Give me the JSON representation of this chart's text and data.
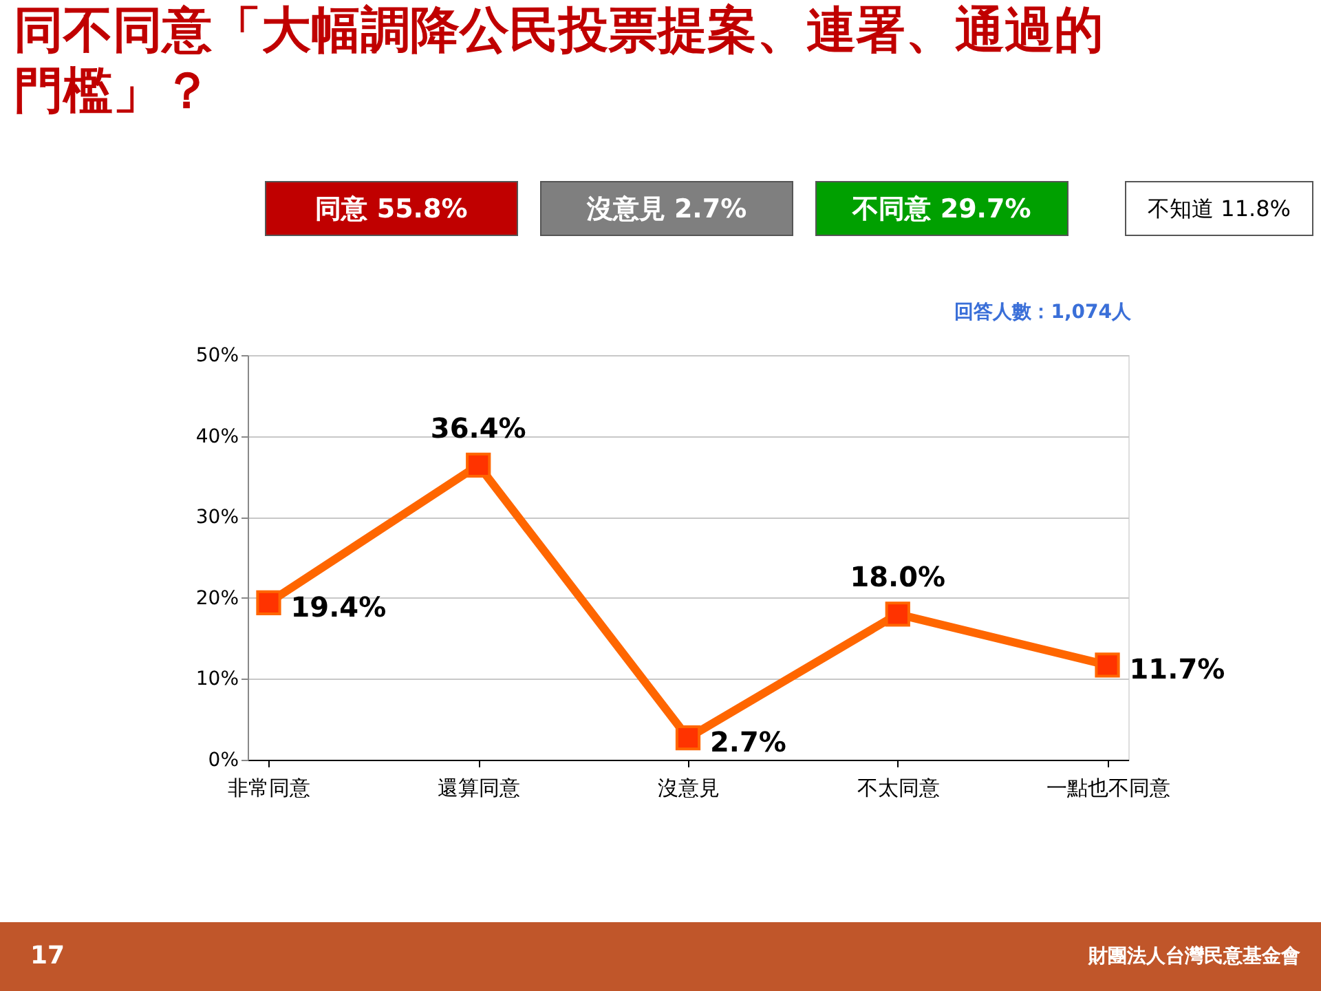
{
  "chart_data": {
    "type": "line",
    "title": "同不同意「大幅調降公民投票提案、連署、通過的門檻」？",
    "categories": [
      "非常同意",
      "還算同意",
      "沒意見",
      "不太同意",
      "一點也不同意"
    ],
    "series": [
      {
        "color": "#ff6600",
        "values": [
          19.4,
          36.4,
          2.7,
          18.0,
          11.7
        ]
      }
    ],
    "ylim": [
      0,
      50
    ],
    "yticks": [
      {
        "value": 0,
        "label": "0%"
      },
      {
        "value": 10,
        "label": "10%"
      },
      {
        "value": 20,
        "label": "20%"
      },
      {
        "value": 30,
        "label": "30%"
      },
      {
        "value": 40,
        "label": "40%"
      },
      {
        "value": 50,
        "label": "50%"
      }
    ],
    "grid": "y",
    "marker": "square",
    "line_style": "solid",
    "value_labels": [
      "19.4%",
      "36.4%",
      "2.7%",
      "18.0%",
      "11.7%"
    ],
    "annotations": [
      "同意 55.8%",
      "沒意見 2.7%",
      "不同意 29.7%",
      "不知道 11.8%",
      "回答人數：1,074人",
      "17",
      "財團法人台灣民意基金會"
    ]
  }
}
